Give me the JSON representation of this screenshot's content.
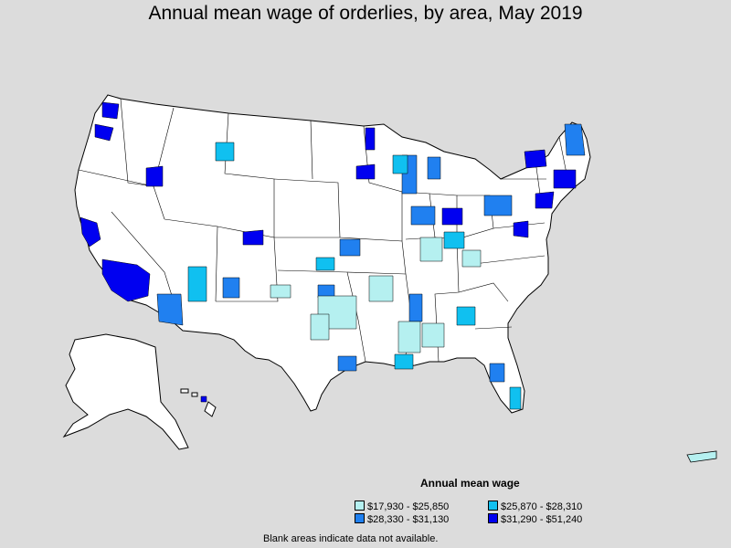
{
  "title": "Annual mean wage of orderlies, by area, May 2019",
  "legend": {
    "title": "Annual mean wage",
    "items": [
      {
        "label": "$17,930 - $25,850",
        "color": "#b5f0f0"
      },
      {
        "label": "$25,870 - $28,310",
        "color": "#10c0f0"
      },
      {
        "label": "$28,330 - $31,130",
        "color": "#2080f0"
      },
      {
        "label": "$31,290 - $51,240",
        "color": "#0000f0"
      }
    ]
  },
  "footnote": "Blank areas indicate data not available.",
  "colors": {
    "background": "#dcdcdc",
    "land": "#ffffff",
    "border": "#000000"
  }
}
